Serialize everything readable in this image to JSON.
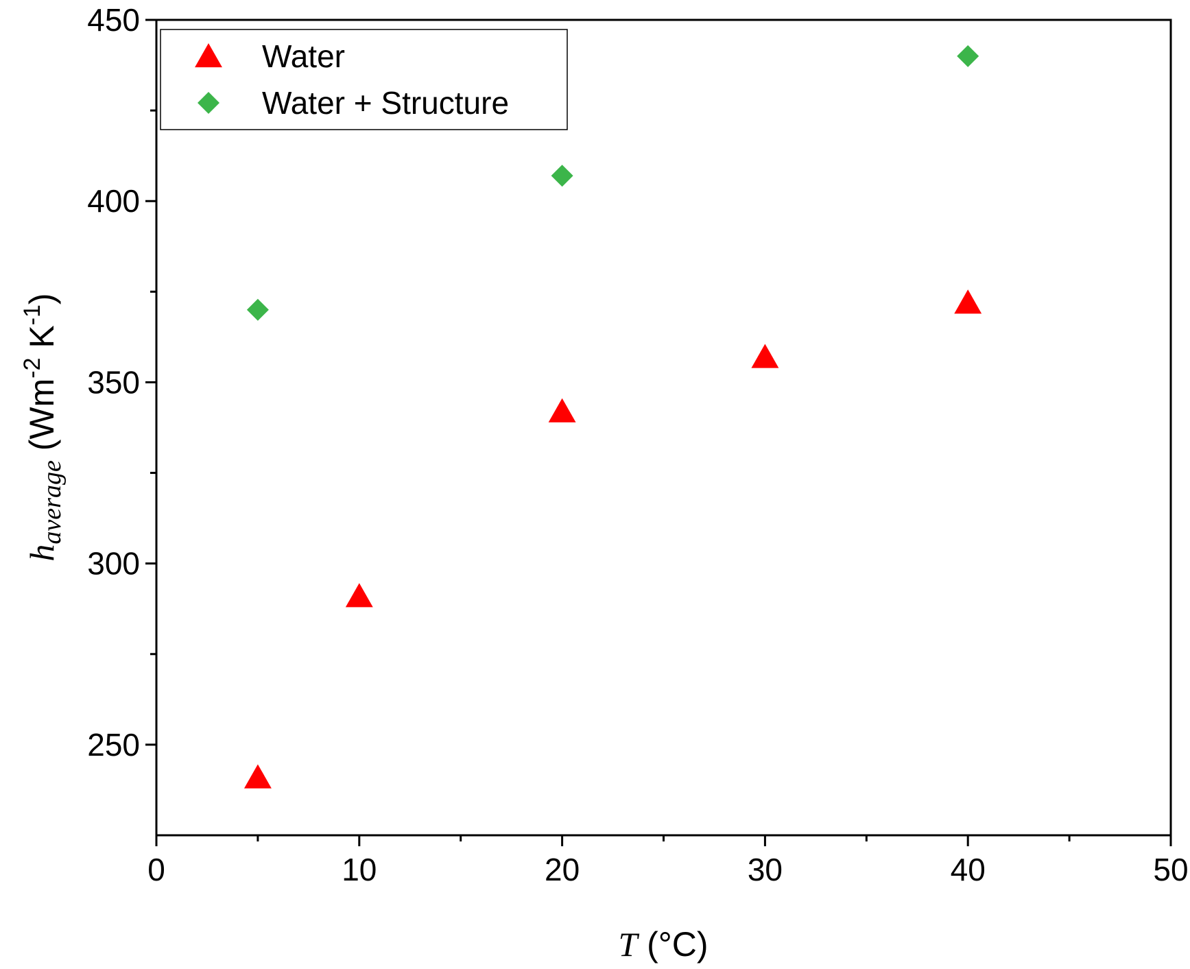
{
  "chart_data": {
    "type": "scatter",
    "xlim": [
      0,
      50
    ],
    "ylim": [
      225,
      450
    ],
    "x_ticks": [
      0,
      10,
      20,
      30,
      40,
      50
    ],
    "x_tick_labels": [
      "0",
      "10",
      "20",
      "30",
      "40",
      "50"
    ],
    "x_minor_ticks": [
      5,
      15,
      25,
      35,
      45
    ],
    "y_ticks": [
      250,
      300,
      350,
      400,
      450
    ],
    "y_tick_labels": [
      "250",
      "300",
      "350",
      "400",
      "450"
    ],
    "y_minor_ticks": [
      275,
      325,
      375,
      425
    ],
    "xlabel": {
      "symbol": "T",
      "unit": " (°C)"
    },
    "ylabel": {
      "symbol": "h",
      "subscript": "average",
      "unit_open": " (Wm",
      "exp1": "-2",
      "unit_mid": " K",
      "exp2": "-1",
      "unit_close": ")"
    },
    "grid": false,
    "legend_position": "top-left",
    "series": [
      {
        "name": "Water",
        "marker": "triangle",
        "color": "#ff0000",
        "x": [
          5,
          10,
          20,
          30,
          40
        ],
        "y": [
          241,
          291,
          342,
          357,
          372
        ]
      },
      {
        "name": "Water + Structure",
        "marker": "diamond",
        "color": "#3cb54a",
        "x": [
          5,
          20,
          40
        ],
        "y": [
          370,
          407,
          440
        ]
      }
    ]
  }
}
